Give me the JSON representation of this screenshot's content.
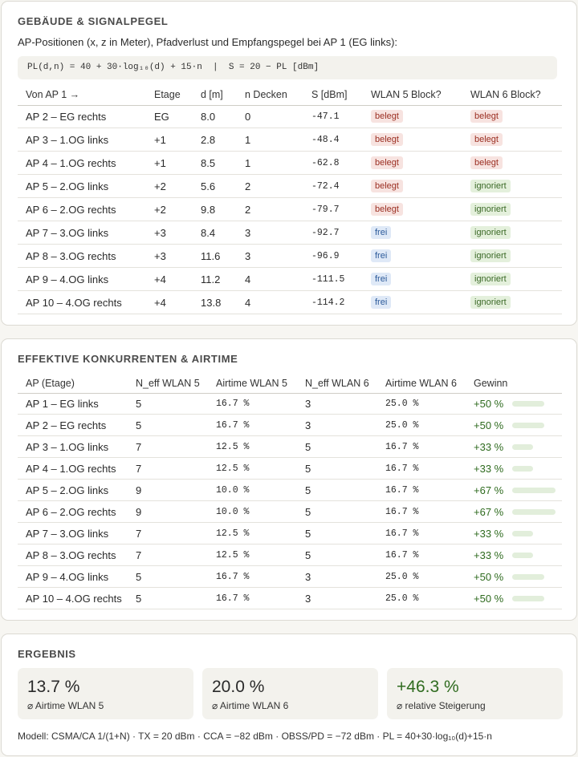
{
  "signal": {
    "title": "GEBÄUDE & SIGNALPEGEL",
    "intro": "AP-Positionen (x, z in Meter), Pfadverlust und Empfangspegel bei AP 1 (EG links):",
    "formula": "PL(d,n) = 40 + 30·log₁₀(d) + 15·n  |  S = 20 − PL [dBm]",
    "headers": [
      "Von AP 1 →",
      "Etage",
      "d [m]",
      "n Decken",
      "S [dBm]",
      "WLAN 5 Block?",
      "WLAN 6 Block?"
    ],
    "rows": [
      [
        "AP 2 – EG rechts",
        "EG",
        "8.0",
        "0",
        "-47.1",
        {
          "text": "belegt",
          "color": "red"
        },
        {
          "text": "belegt",
          "color": "red"
        }
      ],
      [
        "AP 3 – 1.OG links",
        "+1",
        "2.8",
        "1",
        "-48.4",
        {
          "text": "belegt",
          "color": "red"
        },
        {
          "text": "belegt",
          "color": "red"
        }
      ],
      [
        "AP 4 – 1.OG rechts",
        "+1",
        "8.5",
        "1",
        "-62.8",
        {
          "text": "belegt",
          "color": "red"
        },
        {
          "text": "belegt",
          "color": "red"
        }
      ],
      [
        "AP 5 – 2.OG links",
        "+2",
        "5.6",
        "2",
        "-72.4",
        {
          "text": "belegt",
          "color": "red"
        },
        {
          "text": "ignoriert",
          "color": "green"
        }
      ],
      [
        "AP 6 – 2.OG rechts",
        "+2",
        "9.8",
        "2",
        "-79.7",
        {
          "text": "belegt",
          "color": "red"
        },
        {
          "text": "ignoriert",
          "color": "green"
        }
      ],
      [
        "AP 7 – 3.OG links",
        "+3",
        "8.4",
        "3",
        "-92.7",
        {
          "text": "frei",
          "color": "blue"
        },
        {
          "text": "ignoriert",
          "color": "green"
        }
      ],
      [
        "AP 8 – 3.OG rechts",
        "+3",
        "11.6",
        "3",
        "-96.9",
        {
          "text": "frei",
          "color": "blue"
        },
        {
          "text": "ignoriert",
          "color": "green"
        }
      ],
      [
        "AP 9 – 4.OG links",
        "+4",
        "11.2",
        "4",
        "-111.5",
        {
          "text": "frei",
          "color": "blue"
        },
        {
          "text": "ignoriert",
          "color": "green"
        }
      ],
      [
        "AP 10 – 4.OG rechts",
        "+4",
        "13.8",
        "4",
        "-114.2",
        {
          "text": "frei",
          "color": "blue"
        },
        {
          "text": "ignoriert",
          "color": "green"
        }
      ]
    ]
  },
  "airtime": {
    "title": "EFFEKTIVE KONKURRENTEN & AIRTIME",
    "headers": [
      "AP (Etage)",
      "N_eff WLAN 5",
      "Airtime WLAN 5",
      "N_eff WLAN 6",
      "Airtime WLAN 6",
      "Gewinn"
    ],
    "rows": [
      [
        "AP 1 – EG links",
        "5",
        "16.7 %",
        "3",
        "25.0 %",
        {
          "value": 50,
          "label": "+50 %"
        }
      ],
      [
        "AP 2 – EG rechts",
        "5",
        "16.7 %",
        "3",
        "25.0 %",
        {
          "value": 50,
          "label": "+50 %"
        }
      ],
      [
        "AP 3 – 1.OG links",
        "7",
        "12.5 %",
        "5",
        "16.7 %",
        {
          "value": 33,
          "label": "+33 %"
        }
      ],
      [
        "AP 4 – 1.OG rechts",
        "7",
        "12.5 %",
        "5",
        "16.7 %",
        {
          "value": 33,
          "label": "+33 %"
        }
      ],
      [
        "AP 5 – 2.OG links",
        "9",
        "10.0 %",
        "5",
        "16.7 %",
        {
          "value": 67,
          "label": "+67 %"
        }
      ],
      [
        "AP 6 – 2.OG rechts",
        "9",
        "10.0 %",
        "5",
        "16.7 %",
        {
          "value": 67,
          "label": "+67 %"
        }
      ],
      [
        "AP 7 – 3.OG links",
        "7",
        "12.5 %",
        "5",
        "16.7 %",
        {
          "value": 33,
          "label": "+33 %"
        }
      ],
      [
        "AP 8 – 3.OG rechts",
        "7",
        "12.5 %",
        "5",
        "16.7 %",
        {
          "value": 33,
          "label": "+33 %"
        }
      ],
      [
        "AP 9 – 4.OG links",
        "5",
        "16.7 %",
        "3",
        "25.0 %",
        {
          "value": 50,
          "label": "+50 %"
        }
      ],
      [
        "AP 10 – 4.OG rechts",
        "5",
        "16.7 %",
        "3",
        "25.0 %",
        {
          "value": 50,
          "label": "+50 %"
        }
      ]
    ]
  },
  "result": {
    "title": "ERGEBNIS",
    "cards": [
      {
        "value": "13.7 %",
        "label": "⌀ Airtime WLAN 5"
      },
      {
        "value": "20.0 %",
        "label": "⌀ Airtime WLAN 6"
      },
      {
        "value": "+46.3 %",
        "label": "⌀ relative Steigerung",
        "color": "#2f6b1f"
      }
    ],
    "footnote": "Modell: CSMA/CA 1/(1+N) · TX = 20 dBm · CCA = −82 dBm · OBSS/PD = −72 dBm · PL = 40+30·log₁₀(d)+15·n"
  }
}
